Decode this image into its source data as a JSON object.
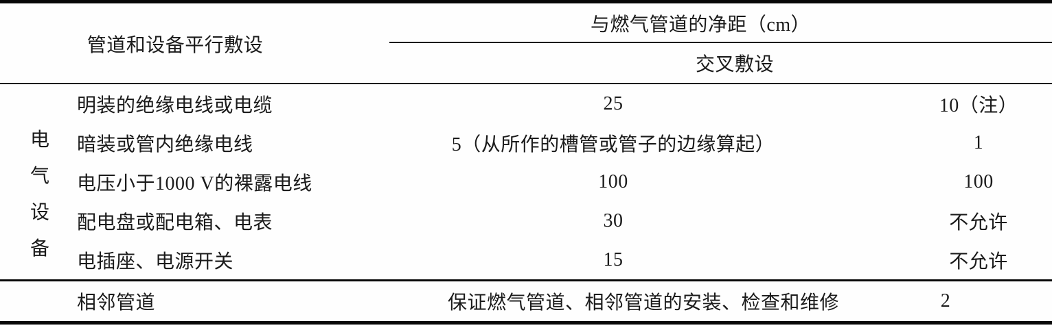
{
  "table": {
    "header": {
      "stub": "管道和设备平行敷设",
      "group": "与燃气管道的净距（cm）",
      "sub": "交叉敷设"
    },
    "category_label": {
      "text": "电气设备",
      "chars": [
        "电",
        "气",
        "设",
        "备"
      ]
    },
    "rows": [
      {
        "item": "明装的绝缘电线或电缆",
        "parallel": "25",
        "cross": "10（注）"
      },
      {
        "item": "暗装或管内绝缘电线",
        "parallel": "5（从所作的槽管或管子的边缘算起）",
        "cross": "1"
      },
      {
        "item": "电压小于1000 V的裸露电线",
        "parallel": "100",
        "cross": "100"
      },
      {
        "item": "配电盘或配电箱、电表",
        "parallel": "30",
        "cross": "不允许"
      },
      {
        "item": "电插座、电源开关",
        "parallel": "15",
        "cross": "不允许"
      }
    ],
    "footer_row": {
      "item": "相邻管道",
      "parallel": "保证燃气管道、相邻管道的安装、检查和维修",
      "cross": "2"
    },
    "colors": {
      "text": "#1b1b1b",
      "line": "#080808",
      "background": "#fefefe"
    }
  }
}
